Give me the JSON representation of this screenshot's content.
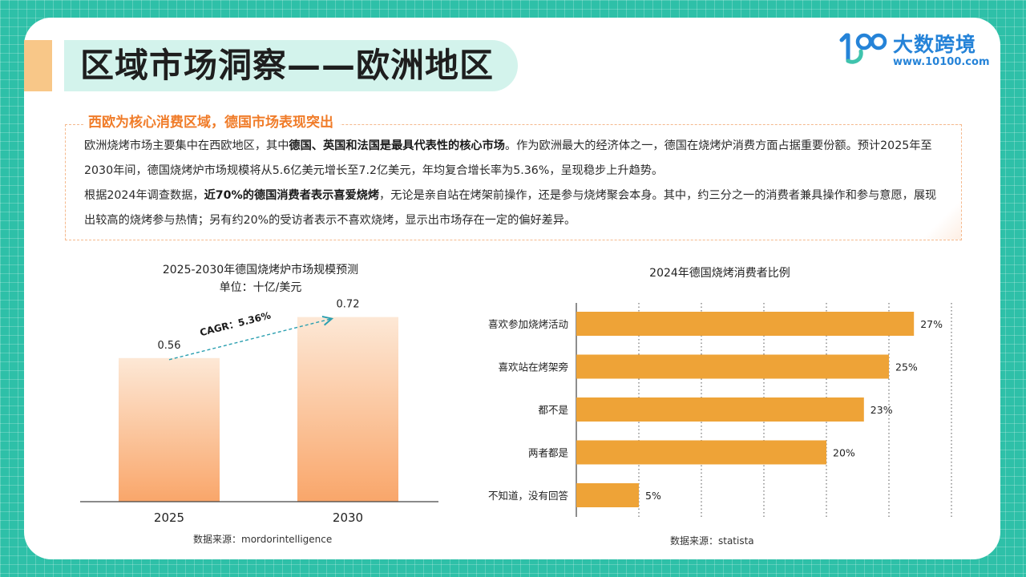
{
  "header": {
    "title": "区域市场洞察——欧洲地区"
  },
  "logo": {
    "mark": "100",
    "name": "大数跨境",
    "url": "www.10100.com"
  },
  "section": {
    "heading": "西欧为核心消费区域，德国市场表现突出",
    "paragraph1": {
      "t1": "欧洲烧烤市场主要集中在西欧地区，其中",
      "b1": "德国、英国和法国是最具代表性的核心市场",
      "t2": "。作为欧洲最大的经济体之一，德国在烧烤炉消费方面占据重要份额。预计2025年至2030年间，德国烧烤炉市场规模将从5.6亿美元增长至7.2亿美元，年均复合增长率为5.36%，呈现稳步上升趋势。"
    },
    "paragraph2": {
      "t1": "根据2024年调查数据，",
      "b1": "近70%的德国消费者表示喜爱烧烤",
      "t2": "，无论是亲自站在烤架前操作，还是参与烧烤聚会本身。其中，约三分之一的消费者兼具操作和参与意愿，展现出较高的烧烤参与热情；另有约20%的受访者表示不喜欢烧烤，显示出市场存在一定的偏好差异。"
    }
  },
  "charts": {
    "left_title_line1": "2025-2030年德国烧烤炉市场规模预测",
    "left_title_line2": "单位：十亿/美元",
    "left_source": "数据来源：mordorintelligence",
    "right_title": "2024年德国烧烤消费者比例",
    "right_source": "数据来源：statista"
  },
  "chart_data": [
    {
      "type": "bar",
      "title": "2025-2030年德国烧烤炉市场规模预测",
      "subtitle": "单位：十亿/美元",
      "categories": [
        "2025",
        "2030"
      ],
      "values": [
        0.56,
        0.72
      ],
      "value_labels": [
        "0.56",
        "0.72"
      ],
      "annotation": "CAGR：5.36%",
      "ylim": [
        0,
        0.8
      ],
      "grid": false,
      "bar_color": "#f9a66a",
      "arrow_color": "#2a9fb0"
    },
    {
      "type": "bar",
      "orientation": "horizontal",
      "title": "2024年德国烧烤消费者比例",
      "categories": [
        "喜欢参加烧烤活动",
        "喜欢站在烤架旁",
        "都不是",
        "两者都是",
        "不知道，没有回答"
      ],
      "values": [
        27,
        25,
        23,
        20,
        5
      ],
      "value_labels": [
        "27%",
        "25%",
        "23%",
        "20%",
        "5%"
      ],
      "xlim": [
        0,
        30
      ],
      "grid": true,
      "bar_color": "#eea337"
    }
  ]
}
